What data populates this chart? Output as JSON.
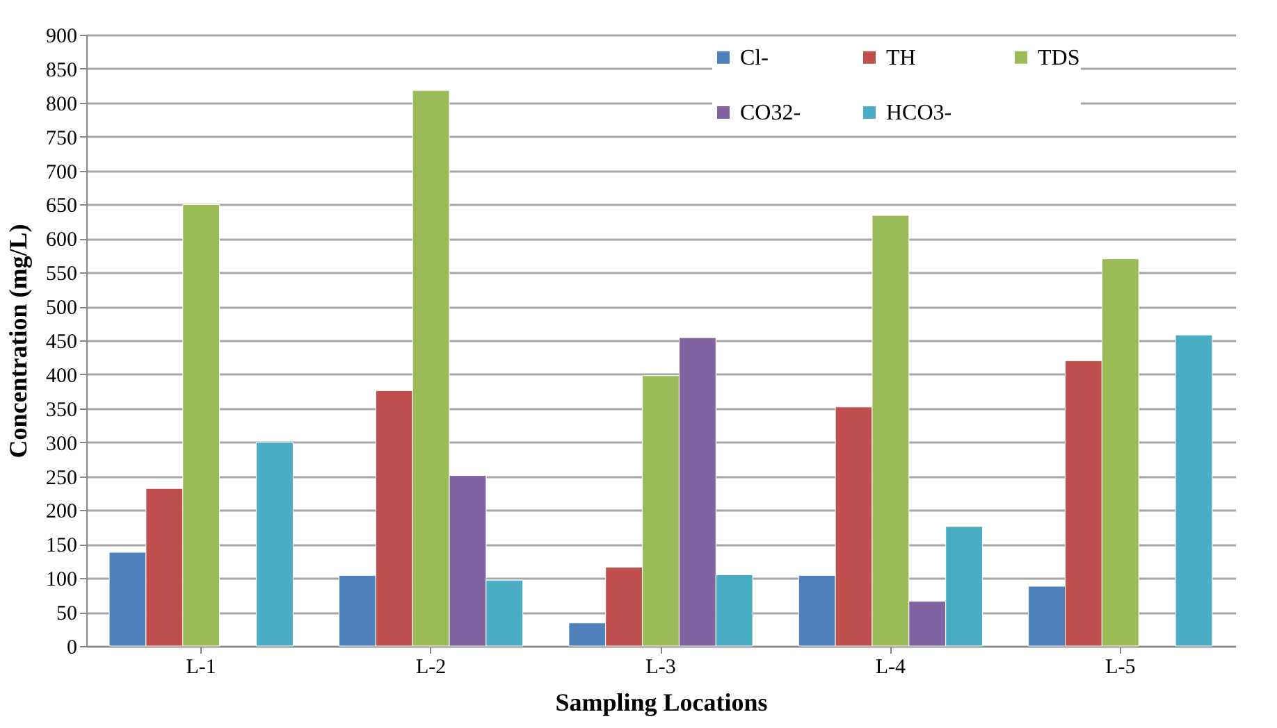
{
  "chart_data": {
    "type": "bar",
    "xlabel": "Sampling Locations",
    "ylabel": "Concentration (mg/L)",
    "categories": [
      "L-1",
      "L-2",
      "L-3",
      "L-4",
      "L-5"
    ],
    "series": [
      {
        "name": "Cl-",
        "color": "#4f81bd",
        "values": [
          138,
          104,
          34,
          104,
          88
        ]
      },
      {
        "name": "TH",
        "color": "#c0504d",
        "values": [
          232,
          376,
          116,
          352,
          420
        ]
      },
      {
        "name": "TDS",
        "color": "#9bbb59",
        "values": [
          650,
          818,
          398,
          634,
          570
        ]
      },
      {
        "name": "CO32-",
        "color": "#8064a2",
        "values": [
          null,
          251,
          454,
          66,
          null
        ]
      },
      {
        "name": "HCO3-",
        "color": "#4bacc6",
        "values": [
          300,
          97,
          105,
          176,
          458
        ]
      }
    ],
    "ylim": [
      0,
      900
    ],
    "yticks": [
      0,
      50,
      100,
      150,
      200,
      250,
      300,
      350,
      400,
      450,
      500,
      550,
      600,
      650,
      700,
      750,
      800,
      850,
      900
    ],
    "grid": "y",
    "legend": "top right"
  }
}
